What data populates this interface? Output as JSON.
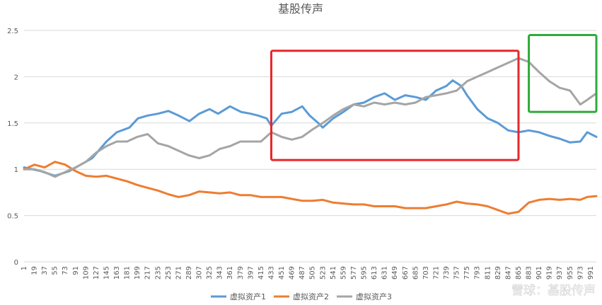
{
  "chart_data": {
    "type": "line",
    "title": "基股传声",
    "xlabel": "",
    "ylabel": "",
    "ylim": [
      0,
      2.5
    ],
    "yticks": [
      "0",
      "0.5",
      "1",
      "1.5",
      "2",
      "2.5"
    ],
    "xticks": [
      1,
      19,
      37,
      55,
      73,
      91,
      109,
      127,
      145,
      163,
      181,
      199,
      217,
      235,
      253,
      271,
      289,
      307,
      325,
      343,
      361,
      379,
      397,
      415,
      433,
      451,
      469,
      487,
      505,
      523,
      541,
      559,
      577,
      595,
      613,
      631,
      649,
      667,
      685,
      703,
      721,
      739,
      757,
      775,
      793,
      811,
      829,
      847,
      865,
      883,
      901,
      919,
      937,
      955,
      973,
      991
    ],
    "xlim": [
      1,
      1001
    ],
    "grid": true,
    "legend_position": "bottom",
    "series": [
      {
        "name": "虚拟资产1",
        "color": "#5b9bd5",
        "points": [
          [
            1,
            1.02
          ],
          [
            30,
            0.98
          ],
          [
            55,
            0.93
          ],
          [
            80,
            0.98
          ],
          [
            100,
            1.05
          ],
          [
            120,
            1.12
          ],
          [
            145,
            1.3
          ],
          [
            163,
            1.4
          ],
          [
            185,
            1.45
          ],
          [
            200,
            1.55
          ],
          [
            217,
            1.58
          ],
          [
            235,
            1.6
          ],
          [
            253,
            1.63
          ],
          [
            271,
            1.58
          ],
          [
            290,
            1.52
          ],
          [
            307,
            1.6
          ],
          [
            325,
            1.65
          ],
          [
            340,
            1.6
          ],
          [
            361,
            1.68
          ],
          [
            380,
            1.62
          ],
          [
            397,
            1.6
          ],
          [
            410,
            1.58
          ],
          [
            425,
            1.55
          ],
          [
            433,
            1.47
          ],
          [
            451,
            1.6
          ],
          [
            469,
            1.62
          ],
          [
            487,
            1.68
          ],
          [
            500,
            1.58
          ],
          [
            515,
            1.5
          ],
          [
            523,
            1.45
          ],
          [
            541,
            1.55
          ],
          [
            559,
            1.62
          ],
          [
            577,
            1.7
          ],
          [
            595,
            1.72
          ],
          [
            613,
            1.78
          ],
          [
            631,
            1.82
          ],
          [
            649,
            1.75
          ],
          [
            667,
            1.8
          ],
          [
            685,
            1.78
          ],
          [
            703,
            1.75
          ],
          [
            721,
            1.85
          ],
          [
            739,
            1.9
          ],
          [
            750,
            1.96
          ],
          [
            765,
            1.9
          ],
          [
            775,
            1.8
          ],
          [
            793,
            1.65
          ],
          [
            811,
            1.55
          ],
          [
            829,
            1.5
          ],
          [
            847,
            1.42
          ],
          [
            865,
            1.4
          ],
          [
            883,
            1.42
          ],
          [
            901,
            1.4
          ],
          [
            919,
            1.36
          ],
          [
            937,
            1.33
          ],
          [
            955,
            1.29
          ],
          [
            973,
            1.3
          ],
          [
            985,
            1.4
          ],
          [
            1001,
            1.35
          ]
        ]
      },
      {
        "name": "虚拟资产2",
        "color": "#ed7d31",
        "points": [
          [
            1,
            1.0
          ],
          [
            19,
            1.05
          ],
          [
            37,
            1.02
          ],
          [
            55,
            1.08
          ],
          [
            73,
            1.05
          ],
          [
            91,
            0.98
          ],
          [
            109,
            0.93
          ],
          [
            127,
            0.92
          ],
          [
            145,
            0.93
          ],
          [
            163,
            0.9
          ],
          [
            181,
            0.87
          ],
          [
            199,
            0.83
          ],
          [
            217,
            0.8
          ],
          [
            235,
            0.77
          ],
          [
            253,
            0.73
          ],
          [
            271,
            0.7
          ],
          [
            289,
            0.72
          ],
          [
            307,
            0.76
          ],
          [
            325,
            0.75
          ],
          [
            343,
            0.74
          ],
          [
            361,
            0.75
          ],
          [
            379,
            0.72
          ],
          [
            397,
            0.72
          ],
          [
            415,
            0.7
          ],
          [
            433,
            0.7
          ],
          [
            451,
            0.7
          ],
          [
            469,
            0.68
          ],
          [
            487,
            0.66
          ],
          [
            505,
            0.66
          ],
          [
            523,
            0.67
          ],
          [
            541,
            0.64
          ],
          [
            559,
            0.63
          ],
          [
            577,
            0.62
          ],
          [
            595,
            0.62
          ],
          [
            613,
            0.6
          ],
          [
            631,
            0.6
          ],
          [
            649,
            0.6
          ],
          [
            667,
            0.58
          ],
          [
            685,
            0.58
          ],
          [
            703,
            0.58
          ],
          [
            721,
            0.6
          ],
          [
            739,
            0.62
          ],
          [
            757,
            0.65
          ],
          [
            775,
            0.63
          ],
          [
            793,
            0.62
          ],
          [
            811,
            0.6
          ],
          [
            829,
            0.56
          ],
          [
            847,
            0.52
          ],
          [
            865,
            0.54
          ],
          [
            883,
            0.64
          ],
          [
            901,
            0.67
          ],
          [
            919,
            0.68
          ],
          [
            937,
            0.67
          ],
          [
            955,
            0.68
          ],
          [
            973,
            0.67
          ],
          [
            985,
            0.7
          ],
          [
            1001,
            0.71
          ]
        ]
      },
      {
        "name": "虚拟资产3",
        "color": "#a5a5a5",
        "points": [
          [
            1,
            1.0
          ],
          [
            19,
            1.0
          ],
          [
            37,
            0.97
          ],
          [
            55,
            0.92
          ],
          [
            73,
            0.97
          ],
          [
            91,
            1.02
          ],
          [
            109,
            1.08
          ],
          [
            127,
            1.18
          ],
          [
            145,
            1.25
          ],
          [
            163,
            1.3
          ],
          [
            181,
            1.3
          ],
          [
            199,
            1.35
          ],
          [
            217,
            1.38
          ],
          [
            235,
            1.28
          ],
          [
            253,
            1.25
          ],
          [
            271,
            1.2
          ],
          [
            289,
            1.15
          ],
          [
            307,
            1.12
          ],
          [
            325,
            1.15
          ],
          [
            343,
            1.22
          ],
          [
            361,
            1.25
          ],
          [
            379,
            1.3
          ],
          [
            397,
            1.3
          ],
          [
            415,
            1.3
          ],
          [
            433,
            1.4
          ],
          [
            451,
            1.35
          ],
          [
            469,
            1.32
          ],
          [
            487,
            1.35
          ],
          [
            505,
            1.43
          ],
          [
            523,
            1.5
          ],
          [
            541,
            1.58
          ],
          [
            559,
            1.65
          ],
          [
            577,
            1.7
          ],
          [
            595,
            1.68
          ],
          [
            613,
            1.72
          ],
          [
            631,
            1.7
          ],
          [
            649,
            1.72
          ],
          [
            667,
            1.7
          ],
          [
            685,
            1.72
          ],
          [
            703,
            1.78
          ],
          [
            721,
            1.8
          ],
          [
            739,
            1.82
          ],
          [
            757,
            1.85
          ],
          [
            775,
            1.95
          ],
          [
            793,
            2.0
          ],
          [
            811,
            2.05
          ],
          [
            829,
            2.1
          ],
          [
            847,
            2.15
          ],
          [
            865,
            2.2
          ],
          [
            883,
            2.16
          ],
          [
            901,
            2.05
          ],
          [
            919,
            1.95
          ],
          [
            937,
            1.88
          ],
          [
            955,
            1.85
          ],
          [
            973,
            1.7
          ],
          [
            985,
            1.75
          ],
          [
            1001,
            1.82
          ]
        ]
      }
    ],
    "annotations": [
      {
        "type": "rectangle",
        "color": "#e8262b",
        "x_range": [
          433,
          865
        ],
        "y_range": [
          1.1,
          2.28
        ]
      },
      {
        "type": "rectangle",
        "color": "#2fab3a",
        "x_range": [
          883,
          1001
        ],
        "y_range": [
          1.62,
          2.45
        ]
      }
    ]
  },
  "watermark": "雪球：基股传声"
}
